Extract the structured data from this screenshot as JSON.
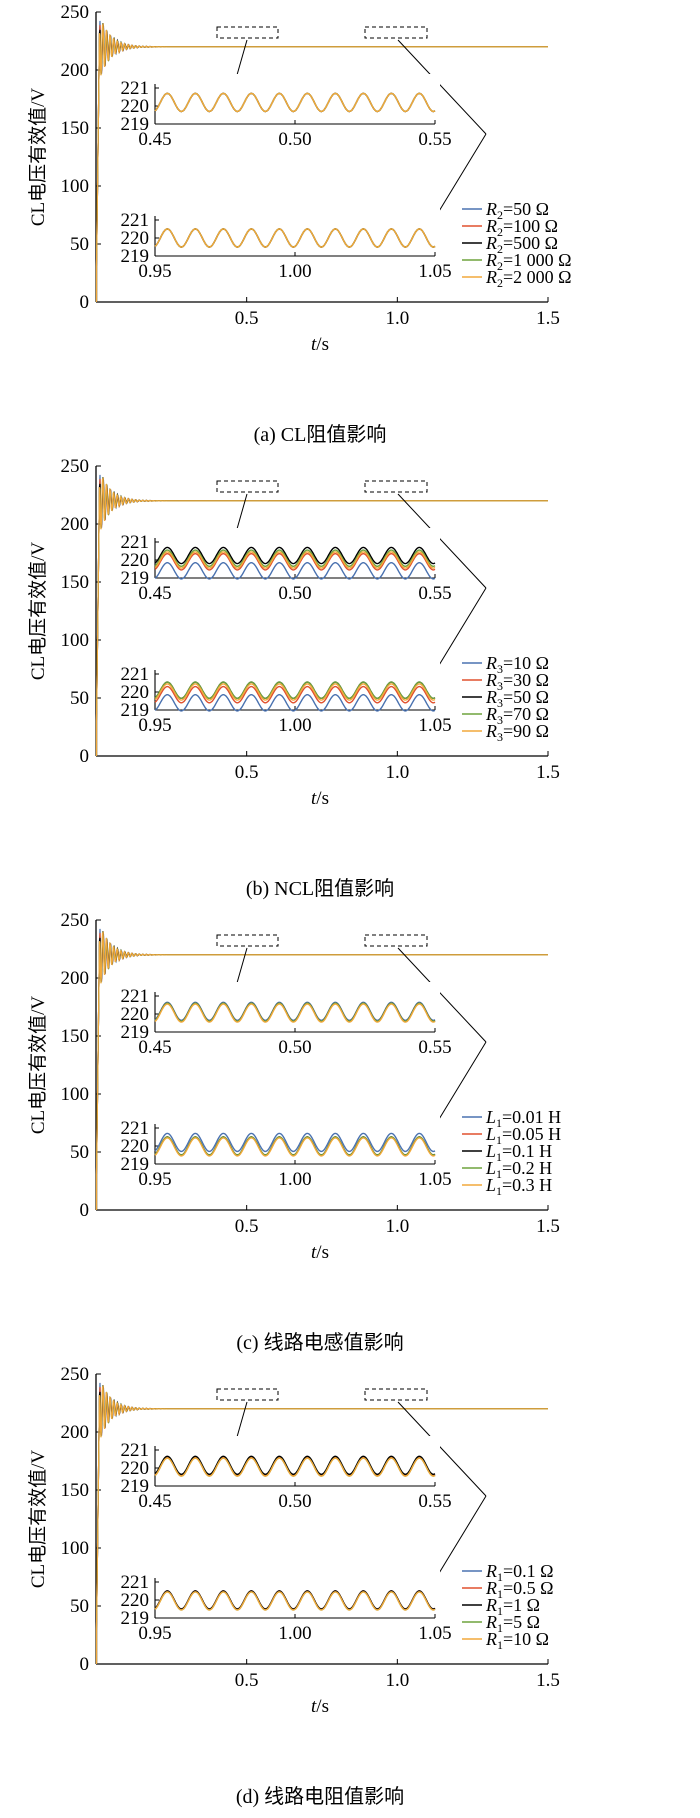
{
  "colors": {
    "blue": "#4a72b0",
    "red": "#e0502e",
    "black": "#000000",
    "green": "#6fa33d",
    "orange": "#f2a93b"
  },
  "chart_data": [
    {
      "type": "line",
      "caption": "(a)  CL阻值影响",
      "ylabel": "CL电压有效值/V",
      "xlabel_italic": "t",
      "xlabel_unit": "/s",
      "xlim": [
        0,
        1.5
      ],
      "ylim": [
        0,
        250
      ],
      "xticks": [
        "0.5",
        "1.0",
        "1.5"
      ],
      "yticks": [
        "0",
        "50",
        "100",
        "150",
        "200",
        "250"
      ],
      "steady_value": 220,
      "insets": [
        {
          "xlim": [
            0.45,
            0.55
          ],
          "ylim": [
            219,
            221
          ],
          "xticks": [
            "0.45",
            "0.50",
            "0.55"
          ],
          "yticks": [
            "219",
            "220",
            "221"
          ]
        },
        {
          "xlim": [
            0.95,
            1.05
          ],
          "ylim": [
            219,
            221
          ],
          "xticks": [
            "0.95",
            "1.00",
            "1.05"
          ],
          "yticks": [
            "219",
            "220",
            "221"
          ]
        }
      ],
      "series": [
        {
          "sym": "R",
          "sub": "2",
          "val": "=50 Ω",
          "color": "#4a72b0",
          "mean_inset1": 220.2,
          "mean_inset2": 220.0,
          "amp": 0.5
        },
        {
          "sym": "R",
          "sub": "2",
          "val": "=100 Ω",
          "color": "#e0502e",
          "mean_inset1": 220.2,
          "mean_inset2": 220.0,
          "amp": 0.5
        },
        {
          "sym": "R",
          "sub": "2",
          "val": "=500 Ω",
          "color": "#000000",
          "mean_inset1": 220.2,
          "mean_inset2": 220.0,
          "amp": 0.5
        },
        {
          "sym": "R",
          "sub": "2",
          "val": "=1 000 Ω",
          "color": "#6fa33d",
          "mean_inset1": 220.2,
          "mean_inset2": 220.0,
          "amp": 0.5
        },
        {
          "sym": "R",
          "sub": "2",
          "val": "=2 000 Ω",
          "color": "#f2a93b",
          "mean_inset1": 220.2,
          "mean_inset2": 220.0,
          "amp": 0.5
        }
      ]
    },
    {
      "type": "line",
      "caption": "(b)  NCL阻值影响",
      "ylabel": "CL电压有效值/V",
      "xlabel_italic": "t",
      "xlabel_unit": "/s",
      "xlim": [
        0,
        1.5
      ],
      "ylim": [
        0,
        250
      ],
      "xticks": [
        "0.5",
        "1.0",
        "1.5"
      ],
      "yticks": [
        "0",
        "50",
        "100",
        "150",
        "200",
        "250"
      ],
      "steady_value": 220,
      "insets": [
        {
          "xlim": [
            0.45,
            0.55
          ],
          "ylim": [
            219,
            221
          ],
          "xticks": [
            "0.45",
            "0.50",
            "0.55"
          ],
          "yticks": [
            "219",
            "220",
            "221"
          ]
        },
        {
          "xlim": [
            0.95,
            1.05
          ],
          "ylim": [
            219,
            221
          ],
          "xticks": [
            "0.95",
            "1.00",
            "1.05"
          ],
          "yticks": [
            "219",
            "220",
            "221"
          ]
        }
      ],
      "series": [
        {
          "sym": "R",
          "sub": "3",
          "val": "=10 Ω",
          "color": "#4a72b0",
          "mean_inset1": 219.4,
          "mean_inset2": 219.4,
          "amp": 0.45
        },
        {
          "sym": "R",
          "sub": "3",
          "val": "=30 Ω",
          "color": "#e0502e",
          "mean_inset1": 219.9,
          "mean_inset2": 219.85,
          "amp": 0.45
        },
        {
          "sym": "R",
          "sub": "3",
          "val": "=50 Ω",
          "color": "#000000",
          "mean_inset1": 220.25,
          "mean_inset2": 220.1,
          "amp": 0.45
        },
        {
          "sym": "R",
          "sub": "3",
          "val": "=70 Ω",
          "color": "#6fa33d",
          "mean_inset1": 220.1,
          "mean_inset2": 220.1,
          "amp": 0.45
        },
        {
          "sym": "R",
          "sub": "3",
          "val": "=90 Ω",
          "color": "#f2a93b",
          "mean_inset1": 220.0,
          "mean_inset2": 220.0,
          "amp": 0.45
        }
      ]
    },
    {
      "type": "line",
      "caption": "(c)  线路电感值影响",
      "ylabel": "CL电压有效值/V",
      "xlabel_italic": "t",
      "xlabel_unit": "/s",
      "xlim": [
        0,
        1.5
      ],
      "ylim": [
        0,
        250
      ],
      "xticks": [
        "0.5",
        "1.0",
        "1.5"
      ],
      "yticks": [
        "0",
        "50",
        "100",
        "150",
        "200",
        "250"
      ],
      "steady_value": 220,
      "insets": [
        {
          "xlim": [
            0.45,
            0.55
          ],
          "ylim": [
            219,
            221
          ],
          "xticks": [
            "0.45",
            "0.50",
            "0.55"
          ],
          "yticks": [
            "219",
            "220",
            "221"
          ]
        },
        {
          "xlim": [
            0.95,
            1.05
          ],
          "ylim": [
            219,
            221
          ],
          "xticks": [
            "0.95",
            "1.00",
            "1.05"
          ],
          "yticks": [
            "219",
            "220",
            "221"
          ]
        }
      ],
      "series": [
        {
          "sym": "L",
          "sub": "1",
          "val": "=0.01 H",
          "color": "#4a72b0",
          "mean_inset1": 220.15,
          "mean_inset2": 220.2,
          "amp": 0.5
        },
        {
          "sym": "L",
          "sub": "1",
          "val": "=0.05 H",
          "color": "#e0502e",
          "mean_inset1": 220.1,
          "mean_inset2": 220.0,
          "amp": 0.5
        },
        {
          "sym": "L",
          "sub": "1",
          "val": "=0.1 H",
          "color": "#000000",
          "mean_inset1": 220.1,
          "mean_inset2": 220.0,
          "amp": 0.5
        },
        {
          "sym": "L",
          "sub": "1",
          "val": "=0.2 H",
          "color": "#6fa33d",
          "mean_inset1": 220.1,
          "mean_inset2": 220.0,
          "amp": 0.5
        },
        {
          "sym": "L",
          "sub": "1",
          "val": "=0.3 H",
          "color": "#f2a93b",
          "mean_inset1": 220.05,
          "mean_inset2": 219.95,
          "amp": 0.5
        }
      ]
    },
    {
      "type": "line",
      "caption": "(d)  线路电阻值影响",
      "ylabel": "CL电压有效值/V",
      "xlabel_italic": "t",
      "xlabel_unit": "/s",
      "xlim": [
        0,
        1.5
      ],
      "ylim": [
        0,
        250
      ],
      "xticks": [
        "0.5",
        "1.0",
        "1.5"
      ],
      "yticks": [
        "0",
        "50",
        "100",
        "150",
        "200",
        "250"
      ],
      "steady_value": 220,
      "insets": [
        {
          "xlim": [
            0.45,
            0.55
          ],
          "ylim": [
            219,
            221
          ],
          "xticks": [
            "0.45",
            "0.50",
            "0.55"
          ],
          "yticks": [
            "219",
            "220",
            "221"
          ]
        },
        {
          "xlim": [
            0.95,
            1.05
          ],
          "ylim": [
            219,
            221
          ],
          "xticks": [
            "0.95",
            "1.00",
            "1.05"
          ],
          "yticks": [
            "219",
            "220",
            "221"
          ]
        }
      ],
      "series": [
        {
          "sym": "R",
          "sub": "1",
          "val": "=0.1 Ω",
          "color": "#4a72b0",
          "mean_inset1": 220.1,
          "mean_inset2": 220.0,
          "amp": 0.5
        },
        {
          "sym": "R",
          "sub": "1",
          "val": "=0.5 Ω",
          "color": "#e0502e",
          "mean_inset1": 220.1,
          "mean_inset2": 220.0,
          "amp": 0.5
        },
        {
          "sym": "R",
          "sub": "1",
          "val": "=1 Ω",
          "color": "#000000",
          "mean_inset1": 220.15,
          "mean_inset2": 220.0,
          "amp": 0.5
        },
        {
          "sym": "R",
          "sub": "1",
          "val": "=5 Ω",
          "color": "#6fa33d",
          "mean_inset1": 220.05,
          "mean_inset2": 219.95,
          "amp": 0.5
        },
        {
          "sym": "R",
          "sub": "1",
          "val": "=10 Ω",
          "color": "#f2a93b",
          "mean_inset1": 220.05,
          "mean_inset2": 219.95,
          "amp": 0.5
        }
      ]
    }
  ]
}
